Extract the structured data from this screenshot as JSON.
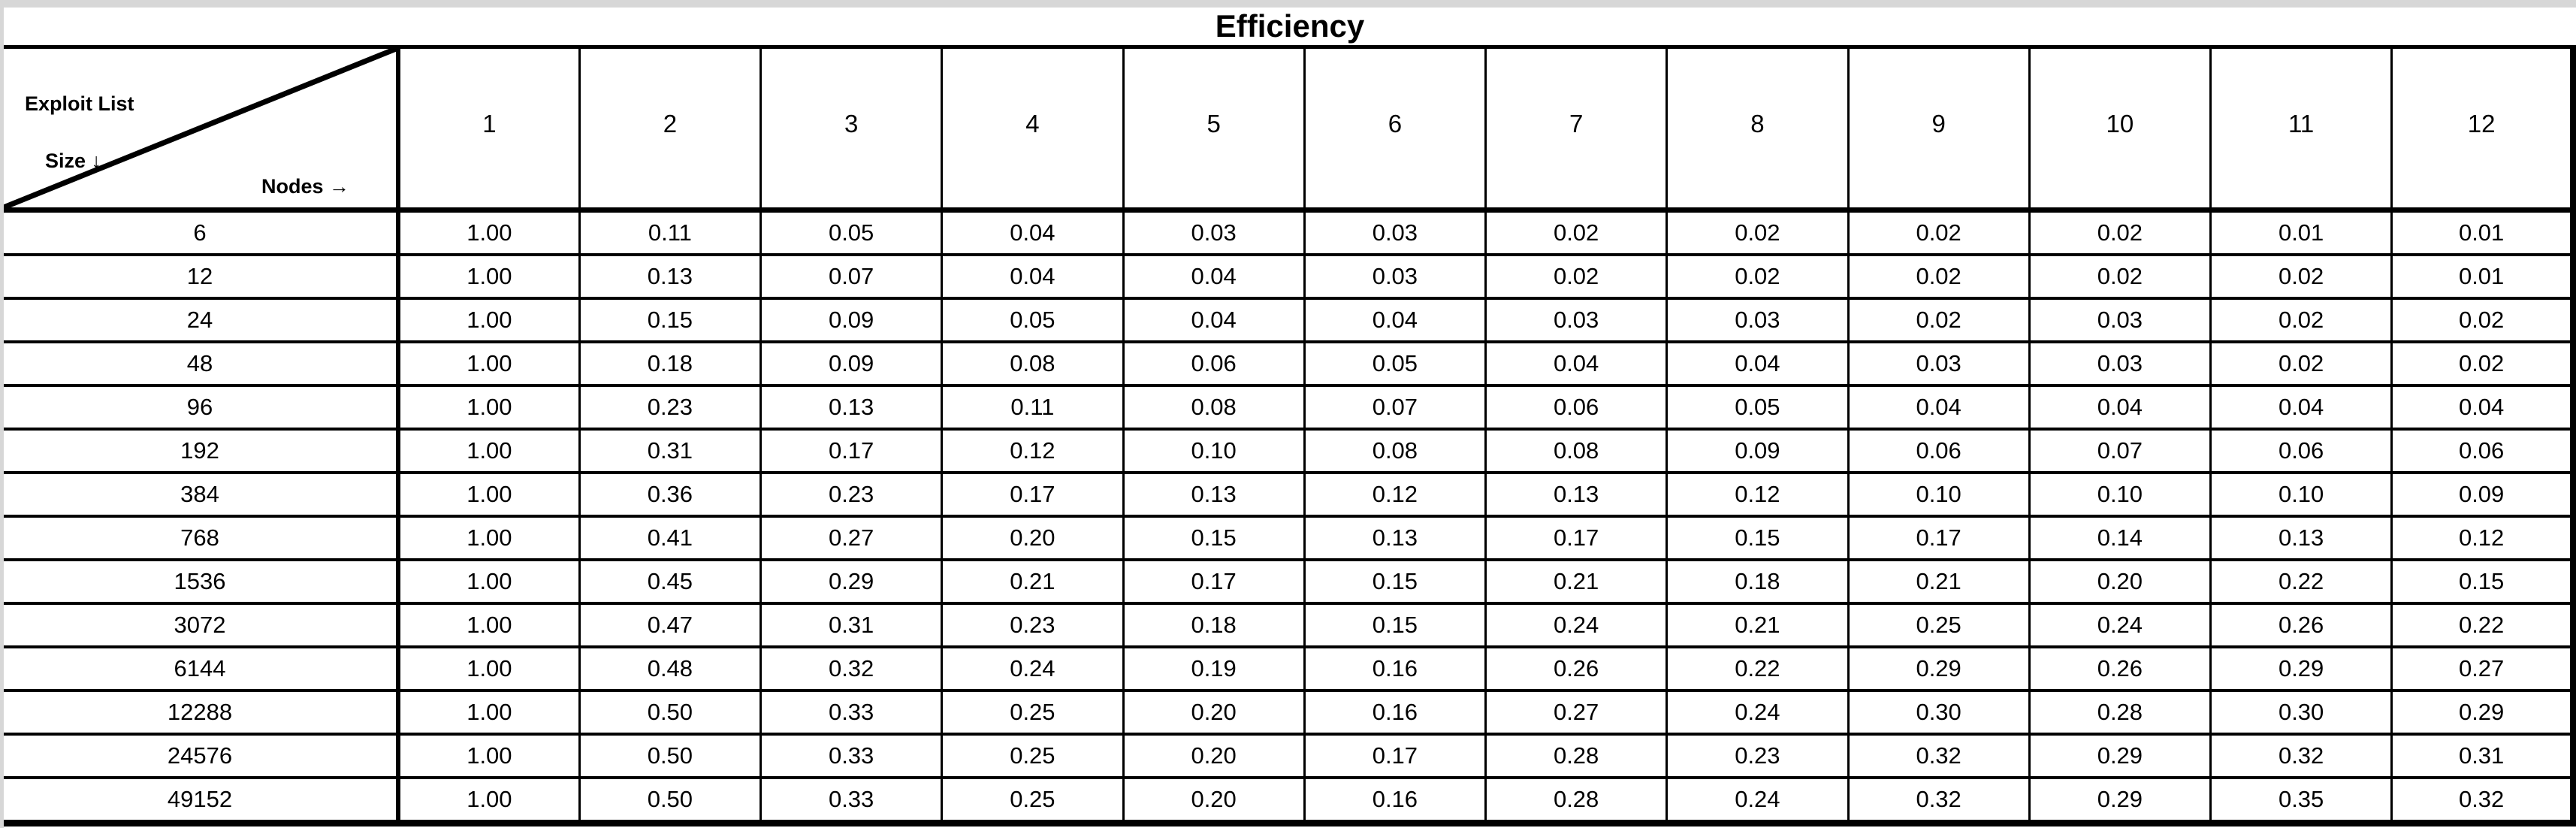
{
  "page": {
    "title": "Efficiency"
  },
  "corner": {
    "top_label": "Exploit List",
    "left_label": "Size ↓",
    "bottom_label": "Nodes →"
  },
  "colors": {
    "border": "#000000",
    "background": "#ffffff",
    "page_margin": "#d7d7d7",
    "text": "#000000"
  },
  "chart_data": {
    "type": "table",
    "title": "Efficiency",
    "row_axis_label": "Exploit List Size ↓",
    "col_axis_label": "Nodes →",
    "columns": [
      1,
      2,
      3,
      4,
      5,
      6,
      7,
      8,
      9,
      10,
      11,
      12
    ],
    "row_labels": [
      6,
      12,
      24,
      48,
      96,
      192,
      384,
      768,
      1536,
      3072,
      6144,
      12288,
      24576,
      49152
    ],
    "rows": [
      [
        1.0,
        0.11,
        0.05,
        0.04,
        0.03,
        0.03,
        0.02,
        0.02,
        0.02,
        0.02,
        0.01,
        0.01
      ],
      [
        1.0,
        0.13,
        0.07,
        0.04,
        0.04,
        0.03,
        0.02,
        0.02,
        0.02,
        0.02,
        0.02,
        0.01
      ],
      [
        1.0,
        0.15,
        0.09,
        0.05,
        0.04,
        0.04,
        0.03,
        0.03,
        0.02,
        0.03,
        0.02,
        0.02
      ],
      [
        1.0,
        0.18,
        0.09,
        0.08,
        0.06,
        0.05,
        0.04,
        0.04,
        0.03,
        0.03,
        0.02,
        0.02
      ],
      [
        1.0,
        0.23,
        0.13,
        0.11,
        0.08,
        0.07,
        0.06,
        0.05,
        0.04,
        0.04,
        0.04,
        0.04
      ],
      [
        1.0,
        0.31,
        0.17,
        0.12,
        0.1,
        0.08,
        0.08,
        0.09,
        0.06,
        0.07,
        0.06,
        0.06
      ],
      [
        1.0,
        0.36,
        0.23,
        0.17,
        0.13,
        0.12,
        0.13,
        0.12,
        0.1,
        0.1,
        0.1,
        0.09
      ],
      [
        1.0,
        0.41,
        0.27,
        0.2,
        0.15,
        0.13,
        0.17,
        0.15,
        0.17,
        0.14,
        0.13,
        0.12
      ],
      [
        1.0,
        0.45,
        0.29,
        0.21,
        0.17,
        0.15,
        0.21,
        0.18,
        0.21,
        0.2,
        0.22,
        0.15
      ],
      [
        1.0,
        0.47,
        0.31,
        0.23,
        0.18,
        0.15,
        0.24,
        0.21,
        0.25,
        0.24,
        0.26,
        0.22
      ],
      [
        1.0,
        0.48,
        0.32,
        0.24,
        0.19,
        0.16,
        0.26,
        0.22,
        0.29,
        0.26,
        0.29,
        0.27
      ],
      [
        1.0,
        0.5,
        0.33,
        0.25,
        0.2,
        0.16,
        0.27,
        0.24,
        0.3,
        0.28,
        0.3,
        0.29
      ],
      [
        1.0,
        0.5,
        0.33,
        0.25,
        0.2,
        0.17,
        0.28,
        0.23,
        0.32,
        0.29,
        0.32,
        0.31
      ],
      [
        1.0,
        0.5,
        0.33,
        0.25,
        0.2,
        0.16,
        0.28,
        0.24,
        0.32,
        0.29,
        0.35,
        0.32
      ]
    ],
    "value_format": "2-decimal",
    "grid": true,
    "notes": "First value column (Nodes=1) is always 1.00"
  }
}
